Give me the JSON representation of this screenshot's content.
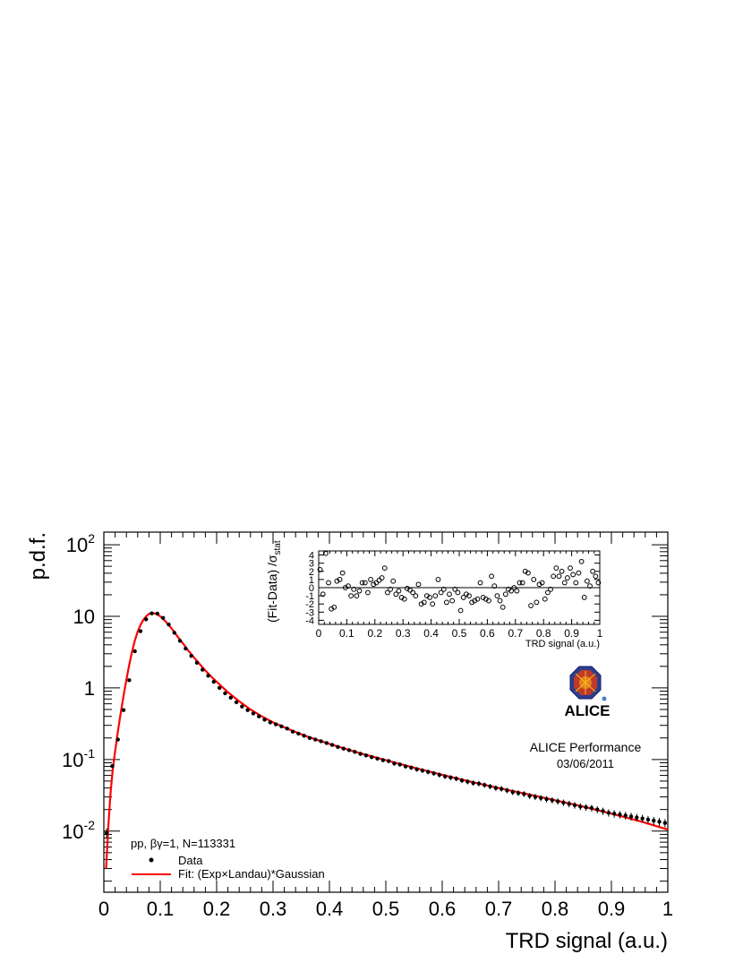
{
  "chart_data": [
    {
      "type": "scatter",
      "title": "",
      "xlabel": "TRD signal (a.u.)",
      "ylabel": "p.d.f.",
      "xlim": [
        0,
        1
      ],
      "ylim": [
        0.0014,
        150
      ],
      "yscale": "log",
      "grid": false,
      "legend_position": "bottom-left",
      "x_ticks": [
        "0",
        "0.1",
        "0.2",
        "0.3",
        "0.4",
        "0.5",
        "0.6",
        "0.7",
        "0.8",
        "0.9",
        "1"
      ],
      "y_ticks": [
        {
          "value": 0.01,
          "base": "10",
          "exp": "-2"
        },
        {
          "value": 0.1,
          "base": "10",
          "exp": "-1"
        },
        {
          "value": 1,
          "base": "1",
          "exp": ""
        },
        {
          "value": 10,
          "base": "10",
          "exp": ""
        },
        {
          "value": 100,
          "base": "10",
          "exp": "2"
        }
      ],
      "legend": {
        "header_pre": "pp, ",
        "header_sym": "βγ",
        "header_post": "=1, N=113331",
        "entries": [
          {
            "label": "Data",
            "marker": "point"
          },
          {
            "label_pre": "Fit: (Exp",
            "label_sym": "×",
            "label_post": "Landau)*Gaussian",
            "marker": "line"
          }
        ]
      },
      "series": [
        {
          "name": "Data",
          "style": "points-with-errors",
          "color": "#000000",
          "x": [
            0.005,
            0.015,
            0.025,
            0.035,
            0.045,
            0.055,
            0.065,
            0.075,
            0.085,
            0.095,
            0.105,
            0.115,
            0.125,
            0.135,
            0.145,
            0.155,
            0.165,
            0.175,
            0.185,
            0.195,
            0.205,
            0.215,
            0.225,
            0.235,
            0.245,
            0.255,
            0.265,
            0.275,
            0.285,
            0.295,
            0.305,
            0.315,
            0.325,
            0.335,
            0.345,
            0.355,
            0.365,
            0.375,
            0.385,
            0.395,
            0.405,
            0.415,
            0.425,
            0.435,
            0.445,
            0.455,
            0.465,
            0.475,
            0.485,
            0.495,
            0.505,
            0.515,
            0.525,
            0.535,
            0.545,
            0.555,
            0.565,
            0.575,
            0.585,
            0.595,
            0.605,
            0.615,
            0.625,
            0.635,
            0.645,
            0.655,
            0.665,
            0.675,
            0.685,
            0.695,
            0.705,
            0.715,
            0.725,
            0.735,
            0.745,
            0.755,
            0.765,
            0.775,
            0.785,
            0.795,
            0.805,
            0.815,
            0.825,
            0.835,
            0.845,
            0.855,
            0.865,
            0.875,
            0.885,
            0.895,
            0.905,
            0.915,
            0.925,
            0.935,
            0.945,
            0.955,
            0.965,
            0.975,
            0.985,
            0.995
          ],
          "y": [
            0.0094,
            0.081,
            0.19,
            0.49,
            1.28,
            3.25,
            6.2,
            9.1,
            11.0,
            10.9,
            9.5,
            7.7,
            5.9,
            4.55,
            3.55,
            2.8,
            2.25,
            1.8,
            1.48,
            1.22,
            1.0,
            0.84,
            0.73,
            0.63,
            0.55,
            0.49,
            0.44,
            0.4,
            0.36,
            0.33,
            0.31,
            0.29,
            0.27,
            0.245,
            0.23,
            0.215,
            0.2,
            0.19,
            0.18,
            0.17,
            0.16,
            0.15,
            0.142,
            0.135,
            0.128,
            0.12,
            0.114,
            0.108,
            0.103,
            0.098,
            0.095,
            0.088,
            0.085,
            0.08,
            0.077,
            0.073,
            0.07,
            0.067,
            0.064,
            0.061,
            0.058,
            0.056,
            0.054,
            0.051,
            0.049,
            0.047,
            0.046,
            0.044,
            0.042,
            0.04,
            0.039,
            0.037,
            0.035,
            0.034,
            0.033,
            0.031,
            0.03,
            0.029,
            0.028,
            0.027,
            0.026,
            0.025,
            0.024,
            0.023,
            0.022,
            0.0215,
            0.021,
            0.02,
            0.019,
            0.018,
            0.0175,
            0.017,
            0.0165,
            0.016,
            0.0155,
            0.015,
            0.0145,
            0.014,
            0.0135,
            0.013
          ],
          "y_err": [
            0.0015,
            0.005,
            0.01,
            0.02,
            0.04,
            0.08,
            0.1,
            0.12,
            0.13,
            0.13,
            0.12,
            0.11,
            0.1,
            0.08,
            0.07,
            0.06,
            0.05,
            0.045,
            0.04,
            0.035,
            0.03,
            0.027,
            0.024,
            0.022,
            0.02,
            0.019,
            0.018,
            0.017,
            0.016,
            0.015,
            0.014,
            0.013,
            0.012,
            0.012,
            0.011,
            0.011,
            0.01,
            0.01,
            0.0095,
            0.009,
            0.009,
            0.0085,
            0.008,
            0.008,
            0.0077,
            0.0074,
            0.0071,
            0.0068,
            0.0066,
            0.0064,
            0.0062,
            0.006,
            0.0058,
            0.0056,
            0.0054,
            0.0053,
            0.0051,
            0.005,
            0.0048,
            0.0047,
            0.0045,
            0.0044,
            0.0043,
            0.0041,
            0.004,
            0.0039,
            0.0038,
            0.0037,
            0.0036,
            0.0035,
            0.0034,
            0.0033,
            0.0032,
            0.0031,
            0.0031,
            0.003,
            0.0029,
            0.0028,
            0.0028,
            0.0027,
            0.0026,
            0.0026,
            0.0025,
            0.0024,
            0.0024,
            0.0023,
            0.0023,
            0.0022,
            0.0022,
            0.0021,
            0.0021,
            0.002,
            0.002,
            0.002,
            0.0019,
            0.0019,
            0.0018,
            0.0018,
            0.0018,
            0.0017
          ]
        },
        {
          "name": "Fit: (Exp×Landau)*Gaussian",
          "style": "line",
          "color": "#ff0000",
          "x": [
            0.004,
            0.008,
            0.012,
            0.016,
            0.02,
            0.025,
            0.03,
            0.035,
            0.04,
            0.045,
            0.05,
            0.055,
            0.06,
            0.065,
            0.07,
            0.075,
            0.08,
            0.085,
            0.09,
            0.095,
            0.1,
            0.11,
            0.12,
            0.13,
            0.14,
            0.15,
            0.16,
            0.17,
            0.18,
            0.19,
            0.2,
            0.22,
            0.24,
            0.26,
            0.28,
            0.3,
            0.33,
            0.36,
            0.4,
            0.45,
            0.5,
            0.55,
            0.6,
            0.65,
            0.7,
            0.75,
            0.8,
            0.85,
            0.9,
            0.95,
            1.0
          ],
          "y": [
            0.003,
            0.012,
            0.035,
            0.075,
            0.13,
            0.25,
            0.45,
            0.78,
            1.3,
            2.1,
            3.2,
            4.6,
            6.1,
            7.6,
            8.9,
            10.0,
            10.8,
            11.1,
            11.0,
            10.6,
            10.0,
            8.4,
            6.8,
            5.3,
            4.2,
            3.3,
            2.65,
            2.15,
            1.75,
            1.45,
            1.22,
            0.87,
            0.65,
            0.5,
            0.4,
            0.33,
            0.26,
            0.21,
            0.165,
            0.125,
            0.098,
            0.077,
            0.061,
            0.049,
            0.04,
            0.033,
            0.027,
            0.022,
            0.0175,
            0.0138,
            0.0105
          ]
        }
      ]
    },
    {
      "type": "scatter",
      "title": "",
      "xlabel": "TRD signal (a.u.)",
      "ylabel_pre": "(Fit-Data) /",
      "ylabel_sym": "σ",
      "ylabel_sub": "stat",
      "xlim": [
        0,
        1
      ],
      "ylim": [
        -4.5,
        4.5
      ],
      "yscale": "linear",
      "grid": false,
      "x_ticks": [
        "0",
        "0.1",
        "0.2",
        "0.3",
        "0.4",
        "0.5",
        "0.6",
        "0.7",
        "0.8",
        "0.9",
        "1"
      ],
      "y_ticks": [
        "-4",
        "-3",
        "-2",
        "-1",
        "0",
        "1",
        "2",
        "3",
        "4"
      ],
      "reference_line_y": 0,
      "series": [
        {
          "name": "",
          "style": "open-circles",
          "color": "#000000",
          "x": [
            0.005,
            0.015,
            0.025,
            0.035,
            0.045,
            0.055,
            0.065,
            0.075,
            0.085,
            0.095,
            0.105,
            0.115,
            0.125,
            0.135,
            0.145,
            0.155,
            0.165,
            0.175,
            0.185,
            0.195,
            0.205,
            0.215,
            0.225,
            0.235,
            0.245,
            0.255,
            0.265,
            0.275,
            0.285,
            0.295,
            0.305,
            0.315,
            0.325,
            0.335,
            0.345,
            0.355,
            0.365,
            0.375,
            0.385,
            0.395,
            0.405,
            0.415,
            0.425,
            0.435,
            0.445,
            0.455,
            0.465,
            0.475,
            0.485,
            0.495,
            0.505,
            0.515,
            0.525,
            0.535,
            0.545,
            0.555,
            0.565,
            0.575,
            0.585,
            0.595,
            0.605,
            0.615,
            0.625,
            0.635,
            0.645,
            0.655,
            0.665,
            0.675,
            0.685,
            0.695,
            0.705,
            0.715,
            0.725,
            0.735,
            0.745,
            0.755,
            0.765,
            0.775,
            0.785,
            0.795,
            0.805,
            0.815,
            0.825,
            0.835,
            0.845,
            0.855,
            0.865,
            0.875,
            0.885,
            0.895,
            0.905,
            0.915,
            0.925,
            0.935,
            0.945,
            0.955,
            0.965,
            0.975,
            0.985,
            0.995
          ],
          "y": [
            2.2,
            -0.8,
            4.2,
            0.6,
            -2.6,
            -2.4,
            0.8,
            1.0,
            1.8,
            0.0,
            0.2,
            -1.0,
            -0.2,
            -1.0,
            -0.4,
            0.6,
            0.6,
            -0.6,
            1.0,
            0.4,
            0.6,
            0.9,
            1.2,
            2.4,
            -0.6,
            -0.2,
            0.8,
            -0.8,
            -0.4,
            -1.2,
            -1.4,
            -0.1,
            -0.3,
            -0.6,
            -1.0,
            0.4,
            -2.0,
            -1.8,
            -1.0,
            -1.2,
            -2.0,
            -1.0,
            1.0,
            -0.6,
            -0.2,
            -1.8,
            -0.8,
            -1.6,
            -0.2,
            -0.6,
            -2.8,
            -1.2,
            -0.8,
            -1.0,
            -1.8,
            -1.6,
            -1.4,
            0.6,
            -1.2,
            -1.4,
            -1.6,
            1.4,
            0.2,
            -1.0,
            -1.6,
            -2.4,
            -0.8,
            -0.2,
            -0.4,
            0.0,
            -0.4,
            0.6,
            0.6,
            2.0,
            1.8,
            -2.2,
            1.0,
            -1.8,
            0.4,
            0.6,
            -1.4,
            -0.6,
            -0.2,
            1.4,
            2.4,
            1.4,
            2.0,
            0.6,
            1.2,
            2.4,
            1.6,
            0.6,
            1.8,
            3.2,
            -1.2,
            0.8,
            0.2,
            2.0,
            1.4,
            0.6
          ]
        }
      ]
    }
  ],
  "logo": {
    "text": "ALICE",
    "label": "ALICE Performance",
    "date": "03/06/2011",
    "label_color": "#8b1a1a",
    "text_color": "#f5a623"
  }
}
